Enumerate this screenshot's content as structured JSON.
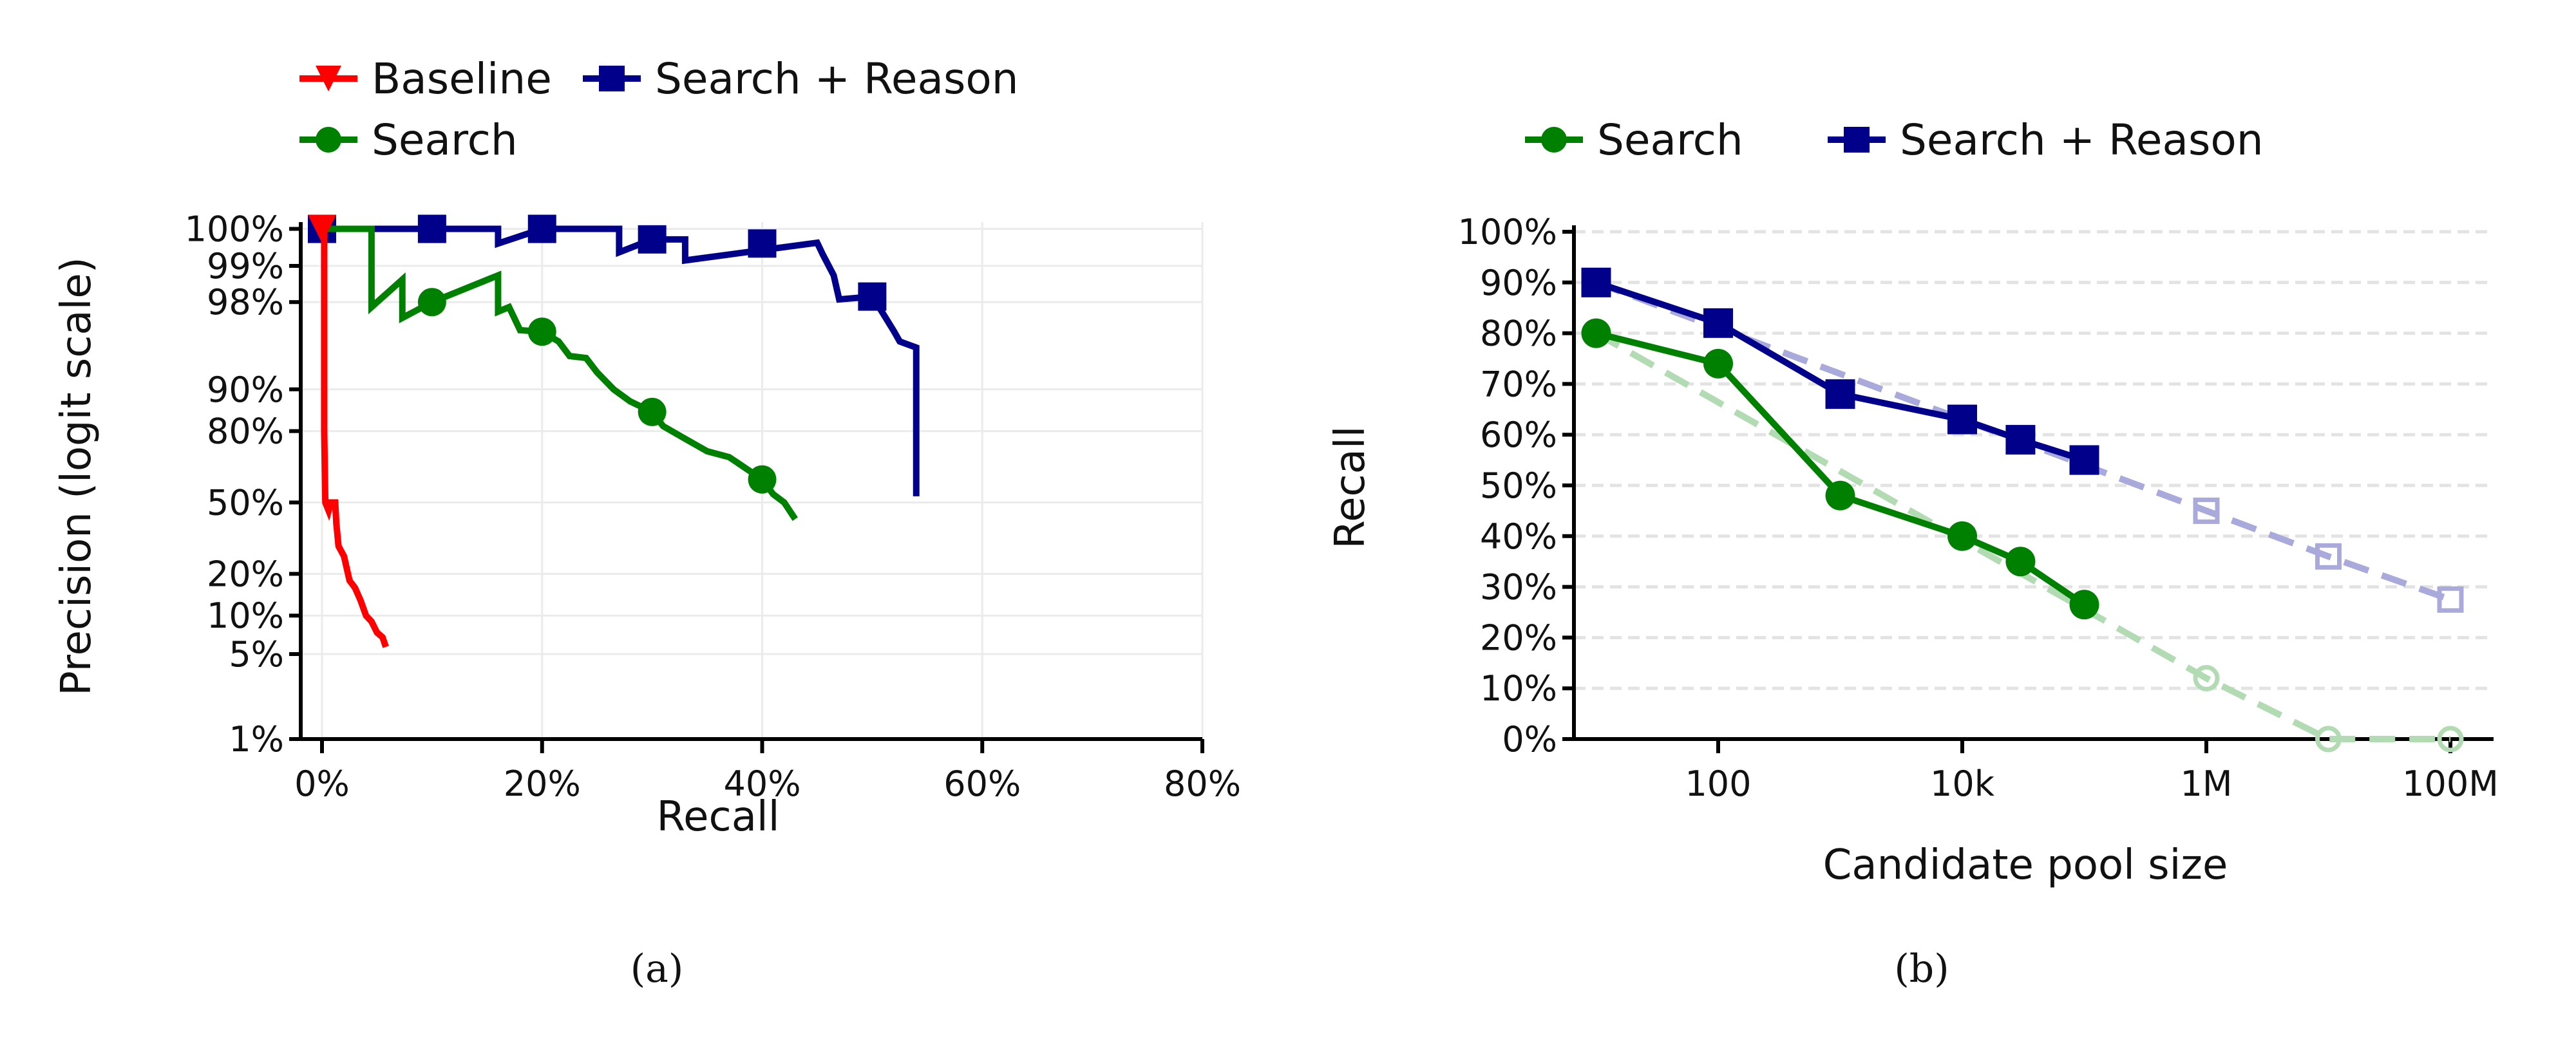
{
  "chart_data": [
    {
      "type": "line",
      "panel": "(a)",
      "xlabel": "Recall",
      "ylabel": "Precision (logit scale)",
      "xlim": [
        0,
        0.8
      ],
      "xticks": [
        0,
        0.2,
        0.4,
        0.6,
        0.8
      ],
      "xtick_labels": [
        "0%",
        "20%",
        "40%",
        "60%",
        "80%"
      ],
      "yscale": "logit",
      "yticks": [
        0.01,
        0.05,
        0.1,
        0.2,
        0.5,
        0.8,
        0.9,
        0.98,
        0.99,
        1.0
      ],
      "ytick_labels": [
        "1%",
        "5%",
        "10%",
        "20%",
        "50%",
        "80%",
        "90%",
        "98%",
        "99%",
        "100%"
      ],
      "grid": true,
      "legend": "top-left, outside",
      "series": [
        {
          "name": "Baseline",
          "color": "#ff0000",
          "marker": "triangle-down",
          "points": [
            [
              0,
              1.0
            ],
            [
              0.002,
              1.0
            ],
            [
              0.002,
              0.8
            ],
            [
              0.003,
              0.5
            ],
            [
              0.006,
              0.46
            ],
            [
              0.008,
              0.5
            ],
            [
              0.012,
              0.5
            ],
            [
              0.013,
              0.4
            ],
            [
              0.015,
              0.3
            ],
            [
              0.02,
              0.26
            ],
            [
              0.025,
              0.18
            ],
            [
              0.03,
              0.16
            ],
            [
              0.035,
              0.13
            ],
            [
              0.04,
              0.1
            ],
            [
              0.045,
              0.09
            ],
            [
              0.05,
              0.074
            ],
            [
              0.055,
              0.068
            ],
            [
              0.058,
              0.057
            ]
          ],
          "marker_points": [
            [
              0,
              1.0
            ]
          ]
        },
        {
          "name": "Search",
          "color": "#008000",
          "marker": "circle",
          "points": [
            [
              0,
              1.0
            ],
            [
              0.045,
              1.0
            ],
            [
              0.045,
              0.978
            ],
            [
              0.073,
              0.987
            ],
            [
              0.073,
              0.973
            ],
            [
              0.1,
              0.98
            ],
            [
              0.16,
              0.988
            ],
            [
              0.16,
              0.976
            ],
            [
              0.17,
              0.978
            ],
            [
              0.18,
              0.966
            ],
            [
              0.2,
              0.965
            ],
            [
              0.215,
              0.958
            ],
            [
              0.225,
              0.945
            ],
            [
              0.24,
              0.943
            ],
            [
              0.25,
              0.926
            ],
            [
              0.265,
              0.9
            ],
            [
              0.28,
              0.877
            ],
            [
              0.3,
              0.853
            ],
            [
              0.31,
              0.815
            ],
            [
              0.33,
              0.775
            ],
            [
              0.35,
              0.73
            ],
            [
              0.37,
              0.707
            ],
            [
              0.4,
              0.61
            ],
            [
              0.41,
              0.54
            ],
            [
              0.42,
              0.5
            ],
            [
              0.43,
              0.42
            ]
          ],
          "marker_points": [
            [
              0.1,
              0.98
            ],
            [
              0.2,
              0.965
            ],
            [
              0.3,
              0.853
            ],
            [
              0.4,
              0.61
            ]
          ]
        },
        {
          "name": "Search + Reason",
          "color": "#00008b",
          "marker": "square",
          "points": [
            [
              0,
              1.0
            ],
            [
              0.16,
              1.0
            ],
            [
              0.16,
              0.9935
            ],
            [
              0.2,
              1.0
            ],
            [
              0.27,
              1.0
            ],
            [
              0.27,
              0.9923
            ],
            [
              0.3,
              0.994
            ],
            [
              0.33,
              0.994
            ],
            [
              0.33,
              0.991
            ],
            [
              0.45,
              0.9936
            ],
            [
              0.455,
              0.992
            ],
            [
              0.465,
              0.988
            ],
            [
              0.47,
              0.981
            ],
            [
              0.5,
              0.982
            ],
            [
              0.51,
              0.975
            ],
            [
              0.52,
              0.965
            ],
            [
              0.525,
              0.958
            ],
            [
              0.54,
              0.953
            ],
            [
              0.54,
              0.53
            ]
          ],
          "marker_points": [
            [
              0,
              1.0
            ],
            [
              0.1,
              1.0
            ],
            [
              0.2,
              1.0
            ],
            [
              0.3,
              0.994
            ],
            [
              0.4,
              0.9935
            ],
            [
              0.5,
              0.982
            ]
          ]
        }
      ]
    },
    {
      "type": "line",
      "panel": "(b)",
      "xlabel": "Candidate pool size",
      "ylabel": "Recall",
      "xscale": "log",
      "xtick_labels": [
        "100",
        "10k",
        "1M",
        "100M"
      ],
      "xticks": [
        100,
        10000,
        1000000,
        100000000
      ],
      "ylim": [
        0,
        1
      ],
      "yticks": [
        0,
        0.1,
        0.2,
        0.3,
        0.4,
        0.5,
        0.6,
        0.7,
        0.8,
        0.9,
        1.0
      ],
      "ytick_labels": [
        "0%",
        "10%",
        "20%",
        "30%",
        "40%",
        "50%",
        "60%",
        "70%",
        "80%",
        "90%",
        "100%"
      ],
      "grid": "dashed horizontal",
      "legend": "top, outside",
      "series": [
        {
          "name": "Search",
          "color": "#008000",
          "marker": "circle",
          "x": [
            10,
            100,
            1000,
            10000,
            30000,
            100000
          ],
          "values": [
            0.8,
            0.74,
            0.48,
            0.4,
            0.35,
            0.265
          ],
          "extrapolated": {
            "color": "#b3dbb3",
            "x": [
              1000000,
              10000000,
              100000000
            ],
            "values": [
              0.12,
              0.0,
              0.0
            ]
          }
        },
        {
          "name": "Search + Reason",
          "color": "#00008b",
          "marker": "square",
          "x": [
            10,
            100,
            1000,
            10000,
            30000,
            100000
          ],
          "values": [
            0.9,
            0.82,
            0.68,
            0.63,
            0.59,
            0.55
          ],
          "extrapolated": {
            "color": "#a9a9dc",
            "x": [
              1000000,
              10000000,
              100000000
            ],
            "values": [
              0.45,
              0.36,
              0.275
            ]
          }
        }
      ]
    }
  ]
}
